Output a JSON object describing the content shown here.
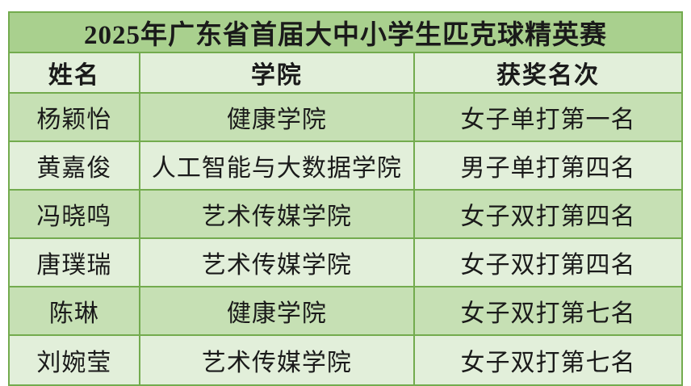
{
  "table": {
    "title": "2025年广东省首届大中小学生匹克球精英赛",
    "columns": [
      "姓名",
      "学院",
      "获奖名次"
    ],
    "rows": [
      {
        "name": "杨颖怡",
        "college": "健康学院",
        "award": "女子单打第一名"
      },
      {
        "name": "黄嘉俊",
        "college": "人工智能与大数据学院",
        "award": "男子单打第四名"
      },
      {
        "name": "冯晓鸣",
        "college": "艺术传媒学院",
        "award": "女子双打第四名"
      },
      {
        "name": "唐璞瑞",
        "college": "艺术传媒学院",
        "award": "女子双打第四名"
      },
      {
        "name": "陈琳",
        "college": "健康学院",
        "award": "女子双打第七名"
      },
      {
        "name": "刘婉莹",
        "college": "艺术传媒学院",
        "award": "女子双打第七名"
      }
    ],
    "colors": {
      "title_bg": "#a9d08e",
      "header_bg": "#e2efda",
      "row_odd_bg": "#c6e0b4",
      "row_even_bg": "#e2efda",
      "border": "#73ab4e",
      "text": "#1a1a1a",
      "page_bg": "#ffffff"
    }
  }
}
